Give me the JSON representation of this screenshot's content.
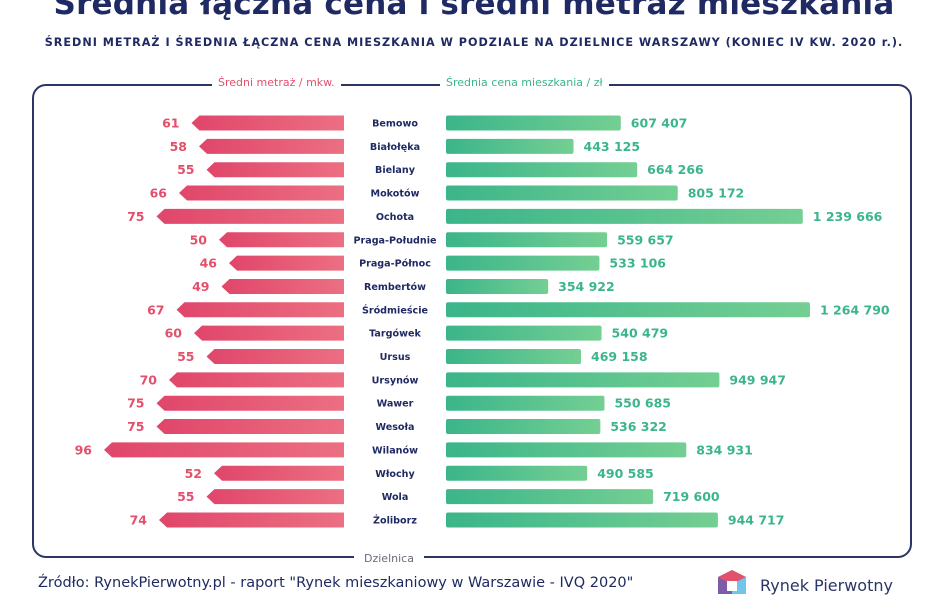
{
  "header": {
    "title": "Średnia łączna cena i średni metraż mieszkania",
    "subtitle": "ŚREDNI METRAŻ I ŚREDNIA ŁĄCZNA CENA MIESZKANIA W PODZIALE NA DZIELNICE WARSZAWY (KONIEC IV KW. 2020 r.)."
  },
  "footer": {
    "source": "Źródło: RynekPierwotny.pl - raport \"Rynek mieszkaniowy w Warszawie - IVQ 2020\"",
    "brand": "Rynek Pierwotny"
  },
  "colors": {
    "pink": "#e2506c",
    "green": "#3bb58a",
    "navy": "#1f2a63"
  },
  "chart_data": {
    "type": "bar",
    "layout": "butterfly",
    "category_label": "Dzielnica",
    "series": [
      {
        "name": "Średni metraż / mkw.",
        "values": [
          61,
          58,
          55,
          66,
          75,
          50,
          46,
          49,
          67,
          60,
          55,
          70,
          75,
          75,
          96,
          52,
          55,
          74
        ],
        "labels": [
          "61",
          "58",
          "55",
          "66",
          "75",
          "50",
          "46",
          "49",
          "67",
          "60",
          "55",
          "70",
          "75",
          "75",
          "96",
          "52",
          "55",
          "74"
        ]
      },
      {
        "name": "Średnia cena mieszkania / zł",
        "values": [
          607407,
          443125,
          664266,
          805172,
          1239666,
          559657,
          533106,
          354922,
          1264790,
          540479,
          469158,
          949947,
          550685,
          536322,
          834931,
          490585,
          719600,
          944717
        ],
        "labels": [
          "607 407",
          "443 125",
          "664 266",
          "805 172",
          "1 239 666",
          "559 657",
          "533 106",
          "354 922",
          "1 264 790",
          "540 479",
          "469 158",
          "949 947",
          "550 685",
          "536 322",
          "834 931",
          "490 585",
          "719 600",
          "944 717"
        ]
      }
    ],
    "categories": [
      "Bemowo",
      "Białołęka",
      "Bielany",
      "Mokotów",
      "Ochota",
      "Praga-Południe",
      "Praga-Północ",
      "Rembertów",
      "Śródmieście",
      "Targówek",
      "Ursus",
      "Ursynów",
      "Wawer",
      "Wesoła",
      "Wilanów",
      "Włochy",
      "Wola",
      "Żoliborz"
    ]
  }
}
